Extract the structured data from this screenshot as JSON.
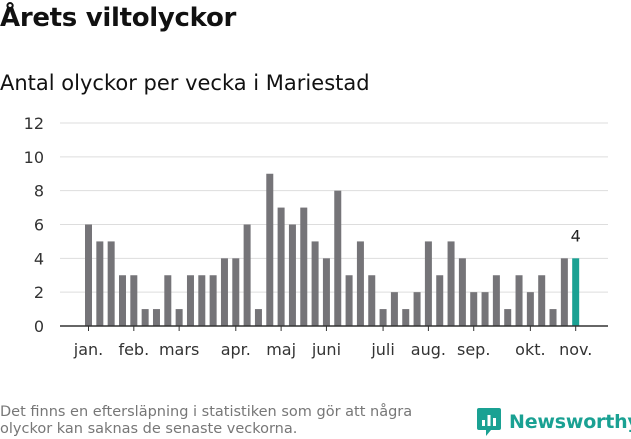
{
  "header": {
    "title": "Årets viltolyckor",
    "subtitle": "Antal olyckor per vecka i Mariestad"
  },
  "chart_data": {
    "type": "bar",
    "title": "Antal olyckor per vecka i Mariestad",
    "xlabel": "",
    "ylabel": "",
    "ylim": [
      0,
      12
    ],
    "yticks": [
      0,
      2,
      4,
      6,
      8,
      10,
      12
    ],
    "grid": true,
    "values": [
      6,
      5,
      5,
      3,
      3,
      1,
      1,
      3,
      1,
      3,
      3,
      3,
      4,
      4,
      6,
      1,
      9,
      7,
      6,
      7,
      5,
      4,
      8,
      3,
      5,
      3,
      1,
      2,
      1,
      2,
      5,
      3,
      5,
      4,
      2,
      2,
      3,
      1,
      3,
      2,
      3,
      1,
      4,
      4
    ],
    "month_labels": [
      {
        "label": "jan.",
        "week_index": 0
      },
      {
        "label": "feb.",
        "week_index": 4
      },
      {
        "label": "mars",
        "week_index": 8
      },
      {
        "label": "apr.",
        "week_index": 13
      },
      {
        "label": "maj",
        "week_index": 17
      },
      {
        "label": "juni",
        "week_index": 21
      },
      {
        "label": "juli",
        "week_index": 26
      },
      {
        "label": "aug.",
        "week_index": 30
      },
      {
        "label": "sep.",
        "week_index": 34
      },
      {
        "label": "okt.",
        "week_index": 39
      },
      {
        "label": "nov.",
        "week_index": 43
      }
    ],
    "annotation": {
      "week_index": 43,
      "text": "4"
    },
    "colors": {
      "bar": "#757478",
      "highlight": "#1aa193",
      "grid": "#dddddd",
      "axis": "#333333"
    }
  },
  "footer": {
    "note_line1": "Det finns en eftersläpning i statistiken som gör att några",
    "note_line2": "olyckor kan saknas de senaste veckorna.",
    "brand": "Newsworthy",
    "brand_icon": "newsworthy-logo-icon",
    "brand_color": "#1aa193"
  }
}
